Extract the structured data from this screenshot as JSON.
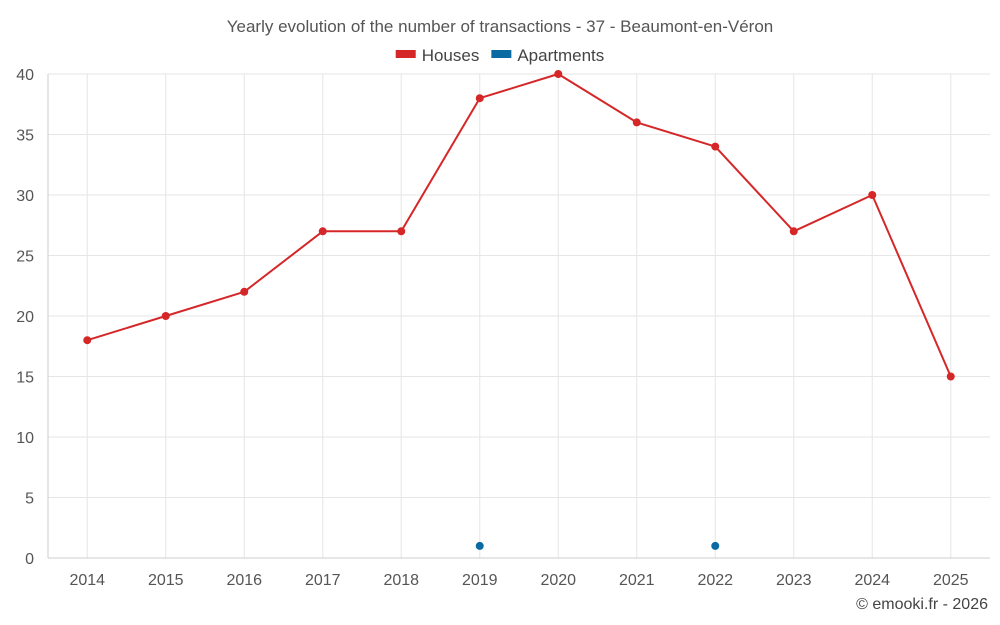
{
  "chart_data": {
    "type": "line",
    "title": "Yearly evolution of the number of transactions - 37 - Beaumont-en-Véron",
    "categories": [
      "2014",
      "2015",
      "2016",
      "2017",
      "2018",
      "2019",
      "2020",
      "2021",
      "2022",
      "2023",
      "2024",
      "2025"
    ],
    "series": [
      {
        "name": "Houses",
        "color": "#d62728",
        "values": [
          18,
          20,
          22,
          27,
          27,
          38,
          40,
          36,
          34,
          27,
          30,
          15
        ]
      },
      {
        "name": "Apartments",
        "color": "#0b6aa2",
        "values": [
          null,
          null,
          null,
          null,
          null,
          1,
          null,
          null,
          1,
          null,
          null,
          null
        ]
      }
    ],
    "ylim": [
      0,
      40
    ],
    "yticks": [
      0,
      5,
      10,
      15,
      20,
      25,
      30,
      35,
      40
    ],
    "xlabel": "",
    "ylabel": "",
    "grid": true,
    "legend_position": "top-center"
  },
  "credit": "© emooki.fr - 2026"
}
